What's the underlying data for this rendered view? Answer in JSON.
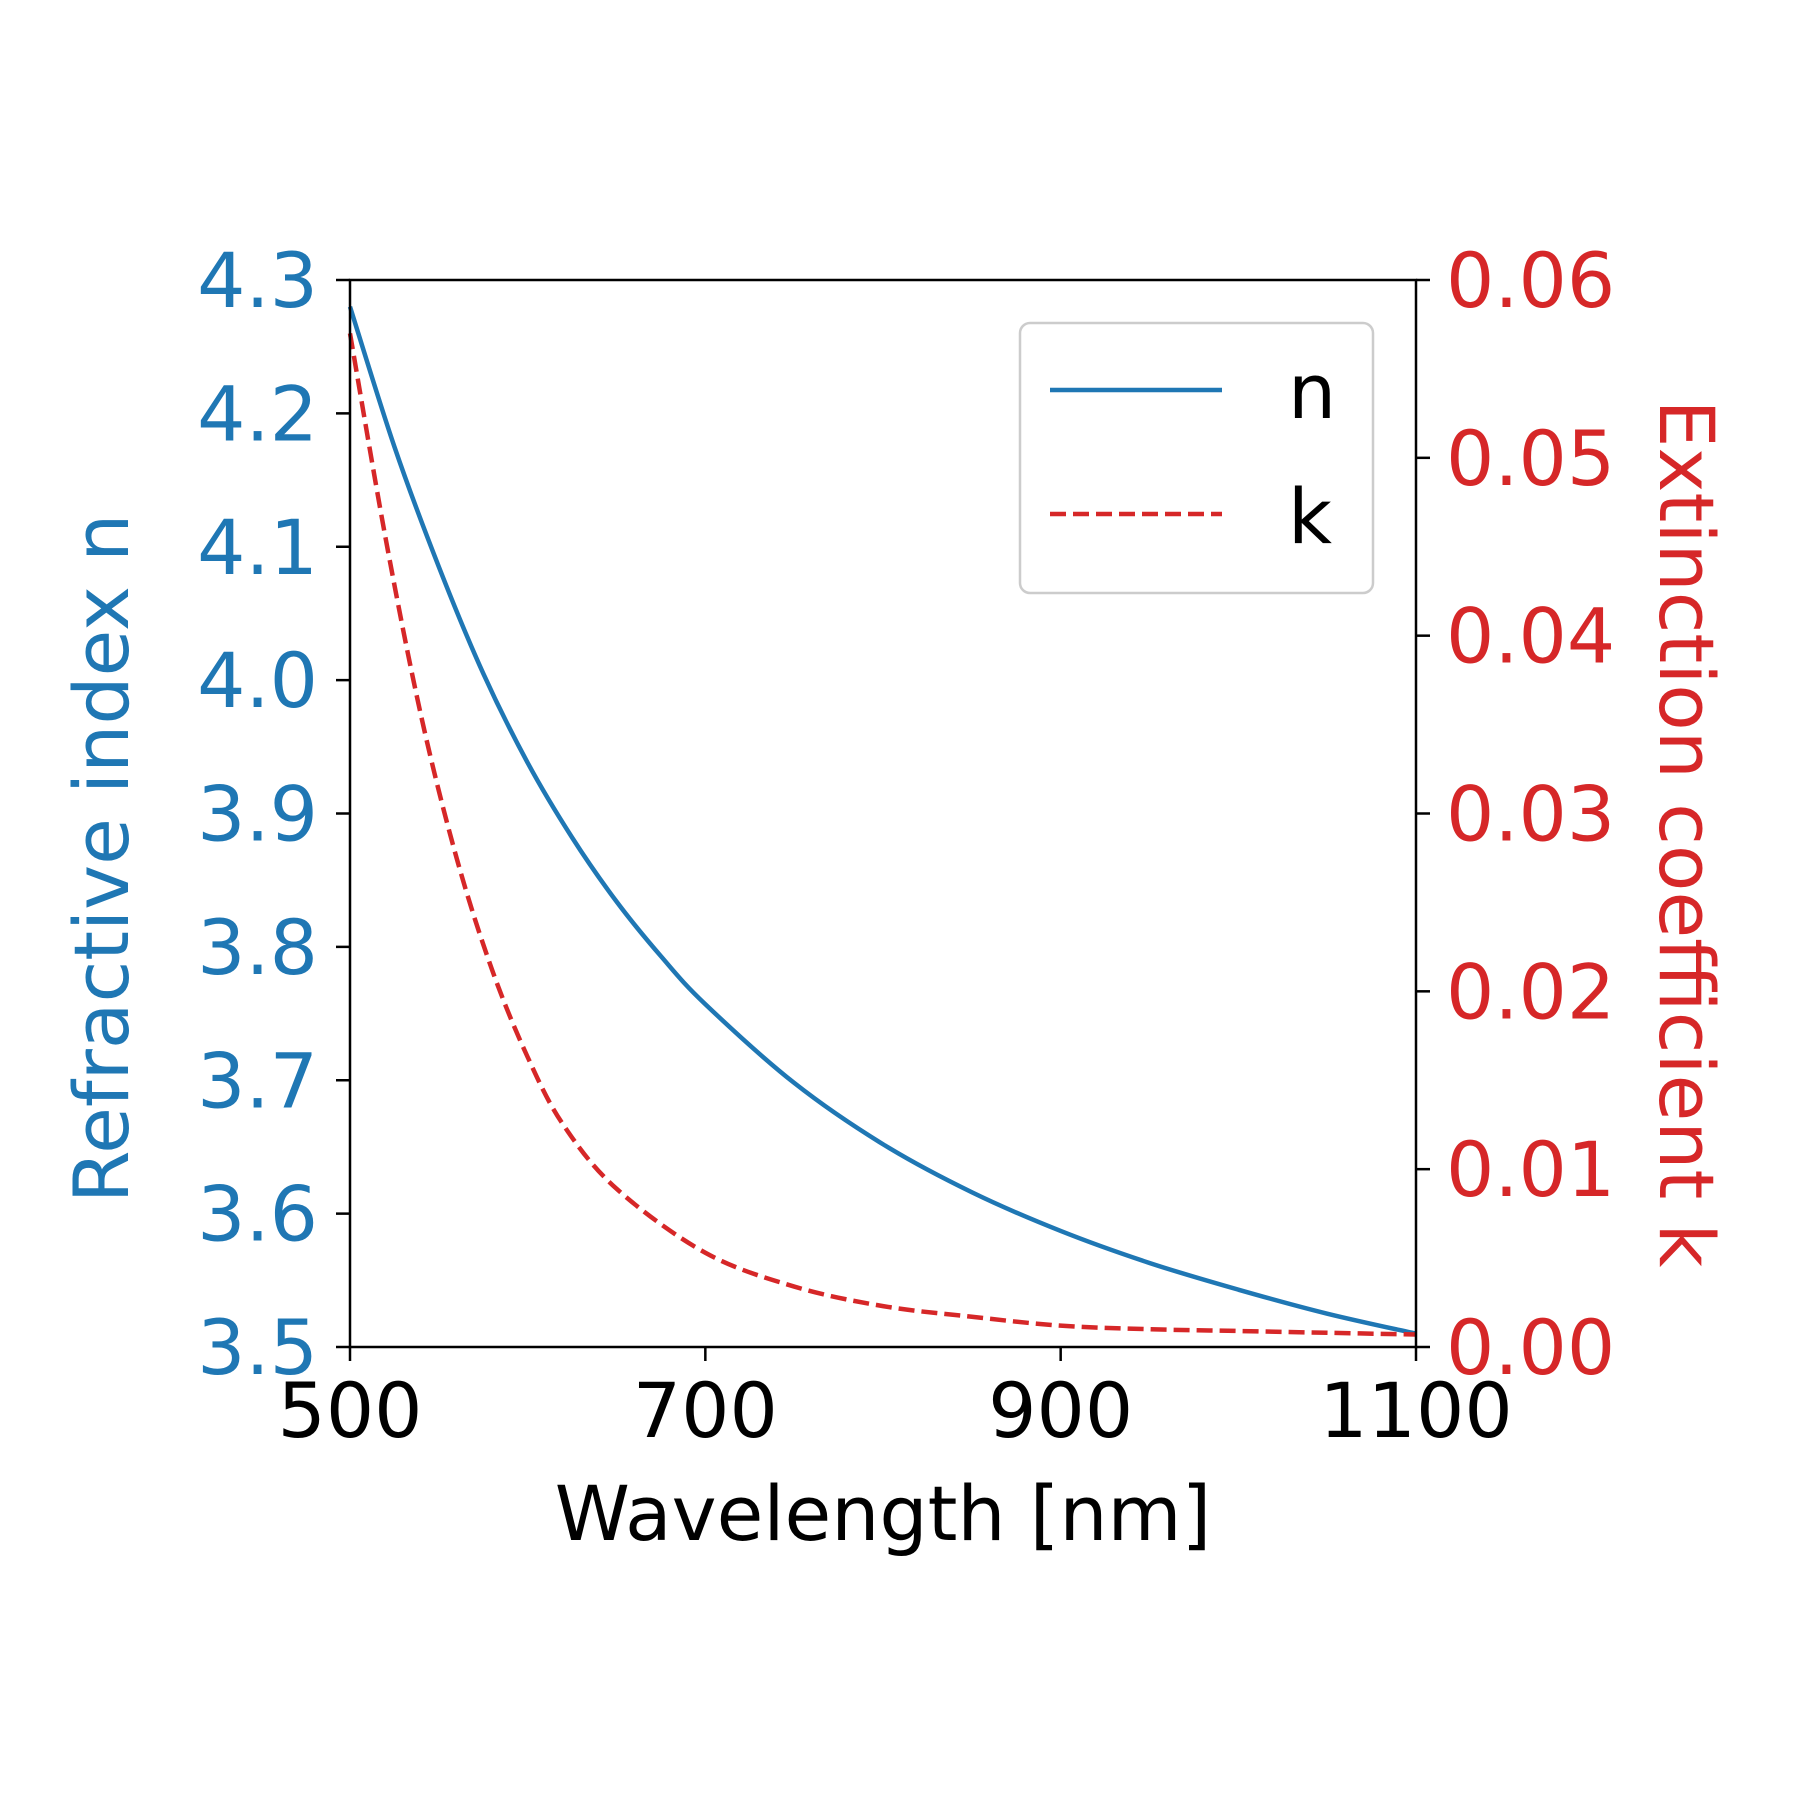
{
  "chart_data": {
    "type": "line",
    "title": "",
    "xlabel": "Wavelength [nm]",
    "ylabel_left": "Refractive index n",
    "ylabel_right": "Extinction coefficient k",
    "xlim": [
      500,
      1100
    ],
    "ylim_left": [
      3.5,
      4.3
    ],
    "ylim_right": [
      0.0,
      0.06
    ],
    "x_ticks": [
      "500",
      "700",
      "900",
      "1100"
    ],
    "y_ticks_left": [
      "3.5",
      "3.6",
      "3.7",
      "3.8",
      "3.9",
      "4.0",
      "4.1",
      "4.2",
      "4.3"
    ],
    "y_ticks_right": [
      "0.00",
      "0.01",
      "0.02",
      "0.03",
      "0.04",
      "0.05",
      "0.06"
    ],
    "legend_position": "top-right",
    "grid": false,
    "colors": {
      "n": "#1f77b4",
      "k": "#d62728",
      "axes": "#000000",
      "legend_border": "#cccccc"
    },
    "series": [
      {
        "name": "n",
        "axis": "left",
        "style": "solid",
        "x": [
          500,
          525,
          550,
          575,
          600,
          625,
          650,
          675,
          700,
          750,
          800,
          850,
          900,
          950,
          1000,
          1050,
          1100
        ],
        "values": [
          4.28,
          4.175,
          4.085,
          4.005,
          3.938,
          3.882,
          3.834,
          3.793,
          3.757,
          3.698,
          3.652,
          3.616,
          3.587,
          3.563,
          3.543,
          3.525,
          3.51
        ]
      },
      {
        "name": "k",
        "axis": "right",
        "style": "dashed",
        "x": [
          500,
          520,
          540,
          560,
          580,
          600,
          620,
          650,
          700,
          750,
          800,
          850,
          900,
          950,
          1000,
          1050,
          1100
        ],
        "values": [
          0.057,
          0.0455,
          0.0355,
          0.0275,
          0.0212,
          0.0163,
          0.0125,
          0.0089,
          0.0053,
          0.0034,
          0.0023,
          0.0017,
          0.0012,
          0.001,
          0.0009,
          0.0008,
          0.0007
        ]
      }
    ]
  }
}
